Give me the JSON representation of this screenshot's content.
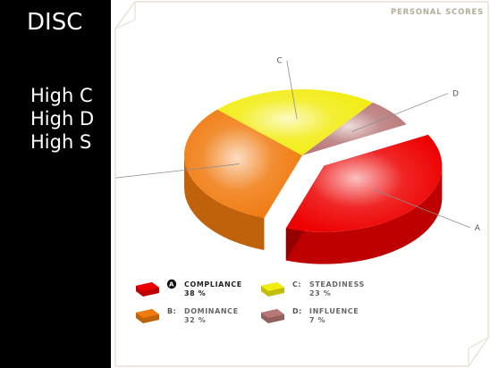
{
  "sidebar": {
    "title": "DISC",
    "items": [
      "High C",
      "High D",
      "High S"
    ]
  },
  "chart_data": {
    "type": "pie",
    "title": "PERSONAL SCORES",
    "exploded": "A",
    "slices": [
      {
        "key": "A",
        "label": "COMPLIANCE",
        "value": 38,
        "value_label": "38 %",
        "color": "#ee0000"
      },
      {
        "key": "B",
        "label": "DOMINANCE",
        "value": 32,
        "value_label": "32 %",
        "color": "#f07a0e"
      },
      {
        "key": "C",
        "label": "STEADINESS",
        "value": 23,
        "value_label": "23 %",
        "color": "#f2ec10"
      },
      {
        "key": "D",
        "label": "INFLUENCE",
        "value": 7,
        "value_label": "7 %",
        "color": "#b87878"
      }
    ]
  }
}
